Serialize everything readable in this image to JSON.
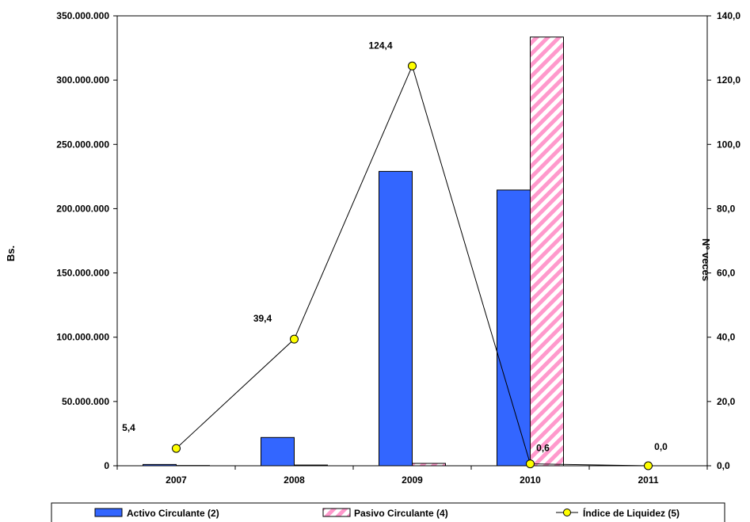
{
  "chart_data": {
    "type": "bar",
    "categories": [
      "2007",
      "2008",
      "2009",
      "2010",
      "2011"
    ],
    "series": [
      {
        "name": "Activo Circulante (2)",
        "kind": "bar",
        "axis": "left",
        "color": "#3366ff",
        "values": [
          1000000,
          22000000,
          229000000,
          214500000,
          0
        ]
      },
      {
        "name": "Pasivo Circulante (4)",
        "kind": "bar",
        "axis": "left",
        "color": "#ff99cc",
        "pattern": "diagonal-stripes",
        "values": [
          200000,
          560000,
          1840000,
          333500000,
          0
        ]
      },
      {
        "name": "Índice de Liquidez (5)",
        "kind": "line",
        "axis": "right",
        "color": "#ffff00",
        "values": [
          5.4,
          39.4,
          124.4,
          0.6,
          0.0
        ],
        "labels": [
          "5,4",
          "39,4",
          "124,4",
          "0,6",
          "0,0"
        ]
      }
    ],
    "ylabel": "Bs.",
    "y2label": "Nº veces",
    "ylim": [
      0,
      350000000
    ],
    "y2lim": [
      0,
      140
    ],
    "yticks": [
      "0",
      "50.000.000",
      "100.000.000",
      "150.000.000",
      "200.000.000",
      "250.000.000",
      "300.000.000",
      "350.000.000"
    ],
    "y2ticks": [
      "0,0",
      "20,0",
      "40,0",
      "60,0",
      "80,0",
      "100,0",
      "120,0",
      "140,0"
    ],
    "grid": false,
    "legend_position": "bottom"
  }
}
